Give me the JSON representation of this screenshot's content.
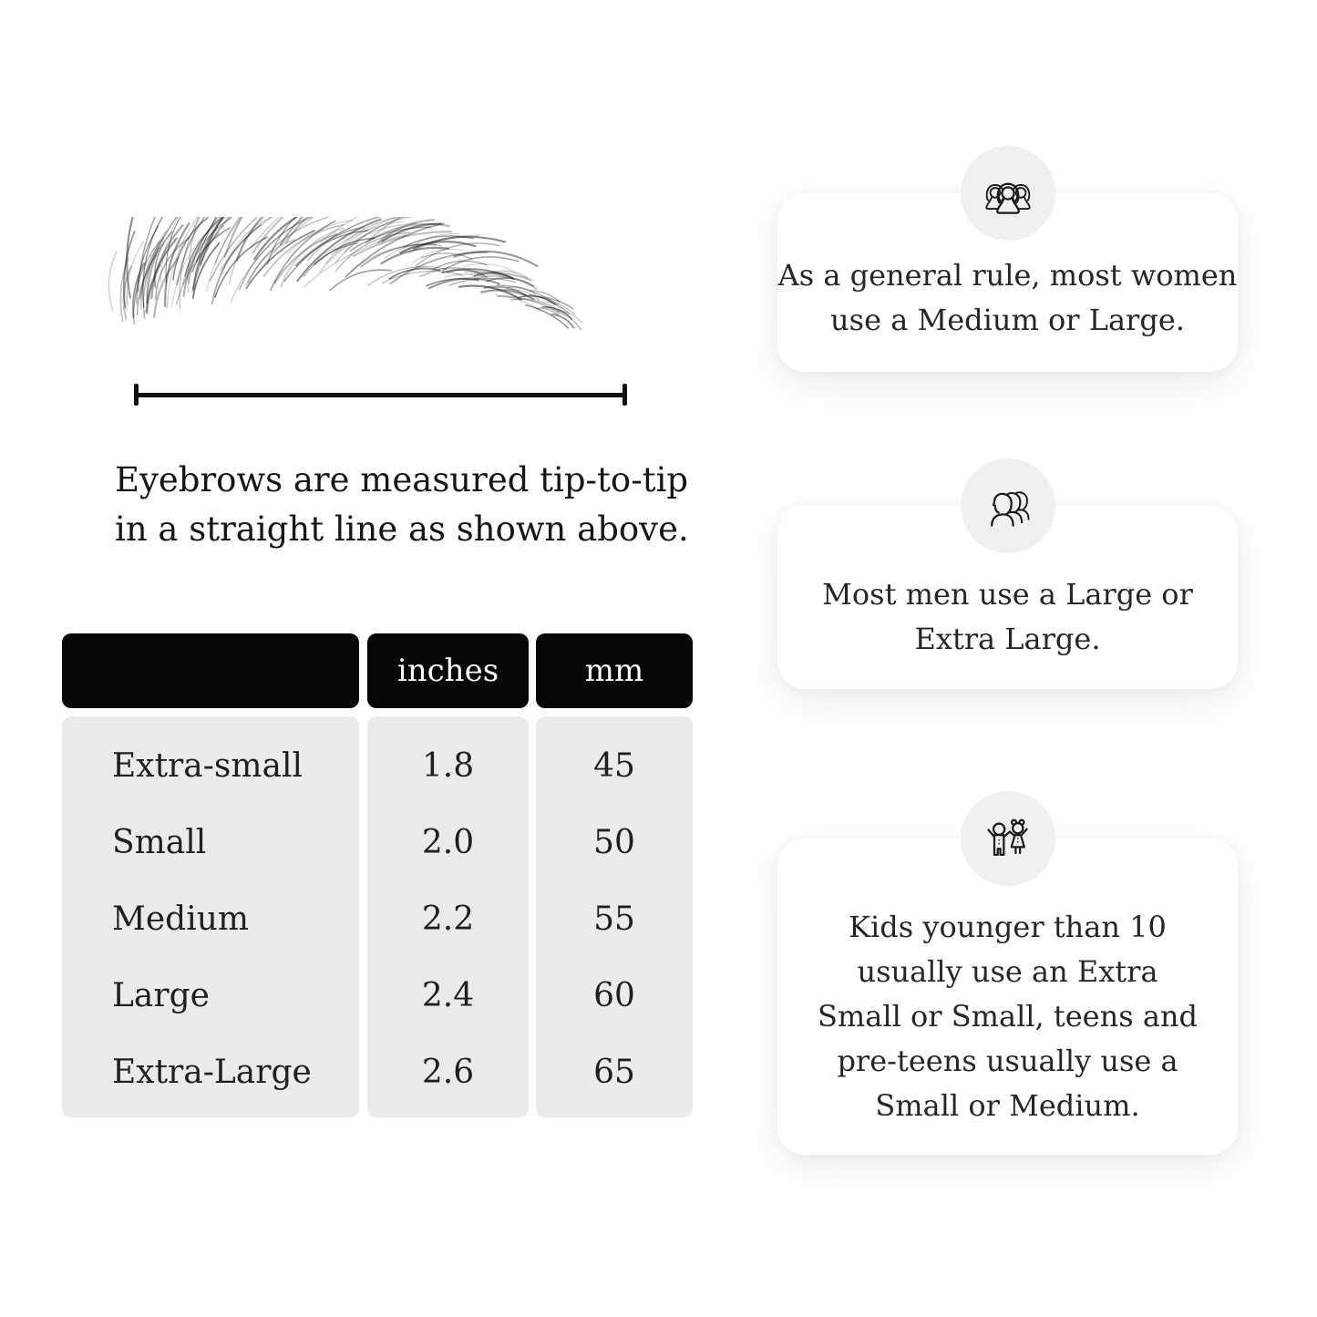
{
  "page": {
    "background_color": "#ffffff",
    "text_color": "#1c1c1c"
  },
  "measurement": {
    "illustration": "eyebrow-sketch",
    "line_color": "#111111",
    "caption_line1": "Eyebrows are measured tip-to-tip",
    "caption_line2": "in a straight line as shown above."
  },
  "size_table": {
    "header_bg": "#070707",
    "header_text_color": "#ffffff",
    "body_bg": "#ebebeb",
    "header": {
      "size": "",
      "inches": "inches",
      "mm": "mm"
    },
    "rows": [
      {
        "label": "Extra-small",
        "inches": "1.8",
        "mm": "45"
      },
      {
        "label": "Small",
        "inches": "2.0",
        "mm": "50"
      },
      {
        "label": "Medium",
        "inches": "2.2",
        "mm": "55"
      },
      {
        "label": "Large",
        "inches": "2.4",
        "mm": "60"
      },
      {
        "label": "Extra-Large",
        "inches": "2.6",
        "mm": "65"
      }
    ]
  },
  "cards": [
    {
      "icon": "women-group-icon",
      "icon_circle_color": "#f0f0f0",
      "lines": [
        "As a general rule, most women",
        "use a Medium or Large."
      ]
    },
    {
      "icon": "men-group-icon",
      "icon_circle_color": "#f0f0f0",
      "lines": [
        "Most men use a Large or",
        "Extra Large."
      ]
    },
    {
      "icon": "kids-icon",
      "icon_circle_color": "#f0f0f0",
      "lines": [
        "Kids younger than 10",
        "usually use an Extra",
        "Small or Small, teens and",
        "pre-teens usually use a",
        "Small or Medium."
      ]
    }
  ]
}
